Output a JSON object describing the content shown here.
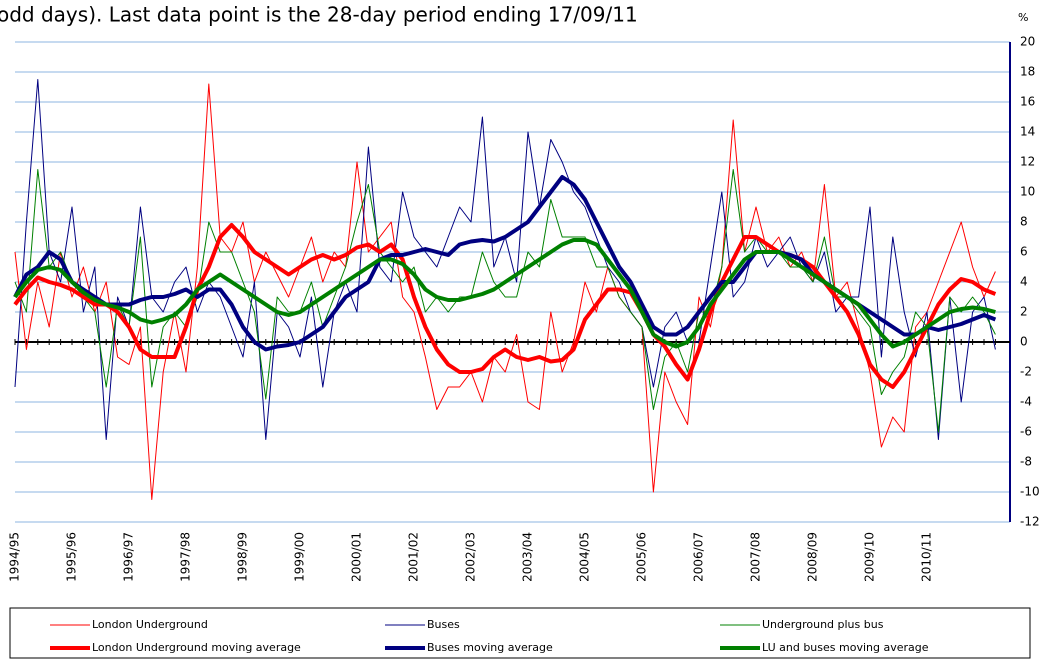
{
  "chart_data": {
    "type": "line",
    "title": "odd days). Last data point is the 28-day period ending 17/09/11",
    "ylabel": "%",
    "categories": [
      "1994/95",
      null,
      null,
      null,
      null,
      "1995/96",
      null,
      null,
      null,
      null,
      "1996/97",
      null,
      null,
      null,
      null,
      "1997/98",
      null,
      null,
      null,
      null,
      "1998/99",
      null,
      null,
      null,
      null,
      "1999/00",
      null,
      null,
      null,
      null,
      "2000/01",
      null,
      null,
      null,
      null,
      "2001/02",
      null,
      null,
      null,
      null,
      "2002/03",
      null,
      null,
      null,
      null,
      "2003/04",
      null,
      null,
      null,
      null,
      "2004/05",
      null,
      null,
      null,
      null,
      "2005/06",
      null,
      null,
      null,
      null,
      "2006/07",
      null,
      null,
      null,
      null,
      "2007/08",
      null,
      null,
      null,
      null,
      "2008/09",
      null,
      null,
      null,
      null,
      "2009/10",
      null,
      null,
      null,
      null,
      "2010/11",
      null,
      null,
      null,
      null,
      null,
      null
    ],
    "ylim": [
      -12,
      20
    ],
    "yticks": [
      -12,
      -10,
      -8,
      -6,
      -4,
      -2,
      0,
      2,
      4,
      6,
      8,
      10,
      12,
      14,
      16,
      18,
      20
    ],
    "grid": true,
    "series": [
      {
        "name": "London Underground",
        "color": "#ff0000",
        "width": 1,
        "values": [
          6,
          -0.5,
          4,
          1,
          6,
          3,
          5,
          2,
          4,
          -1,
          -1.5,
          1,
          -10.5,
          -2,
          2,
          -2,
          5,
          17.2,
          7,
          6,
          8,
          4,
          6,
          4.5,
          3,
          5,
          7,
          4,
          6,
          5,
          12,
          6,
          7,
          8,
          3,
          2,
          -1,
          -4.5,
          -3,
          -3,
          -2,
          -4,
          -1,
          -2,
          0.5,
          -4,
          -4.5,
          2,
          -2,
          0,
          4,
          2,
          5,
          3,
          2,
          1,
          -10,
          -2,
          -4,
          -5.5,
          3,
          1,
          5,
          14.8,
          6,
          9,
          6,
          7,
          5,
          6,
          4,
          10.5,
          3,
          4,
          1,
          -2,
          -7,
          -5,
          -6,
          1,
          2,
          4,
          6,
          8,
          5,
          3,
          4.7
        ]
      },
      {
        "name": "Buses",
        "color": "#000080",
        "width": 1,
        "values": [
          -3,
          8,
          17.5,
          6,
          4,
          9,
          2,
          5,
          -6.5,
          3,
          1,
          9,
          3,
          2,
          4,
          5,
          2,
          4,
          3,
          1,
          -1,
          4,
          -6.5,
          2,
          1,
          -1,
          3,
          -3,
          2,
          4,
          2,
          13,
          5,
          4,
          10,
          7,
          6,
          5,
          7,
          9,
          8,
          15,
          5,
          7,
          4,
          14,
          9,
          13.5,
          12,
          10,
          9,
          7,
          5,
          4,
          2,
          1,
          -3,
          1,
          2,
          0,
          0,
          5,
          10,
          3,
          4,
          7,
          5,
          6,
          7,
          5,
          4,
          6,
          2,
          3,
          3,
          9,
          -1,
          7,
          2,
          -1,
          2,
          -6.5,
          3,
          -4,
          2,
          3,
          -0.5
        ]
      },
      {
        "name": "Underground plus bus",
        "color": "#008000",
        "width": 1,
        "values": [
          4,
          2,
          11.5,
          5,
          6,
          4,
          3,
          2,
          -3,
          2.5,
          1,
          7,
          -3,
          1,
          2,
          1,
          3,
          8,
          6,
          6,
          4,
          2,
          -3.8,
          3,
          2,
          2,
          4,
          1,
          3,
          5,
          8,
          10.5,
          6,
          5,
          4,
          5,
          2,
          3,
          2,
          3,
          3,
          6,
          4,
          3,
          3,
          6,
          5,
          9.5,
          7,
          7,
          7,
          5,
          5,
          3,
          2,
          1,
          -4.5,
          -1,
          0,
          -2,
          2,
          2,
          5,
          11.5,
          6,
          7,
          6,
          6,
          5,
          5,
          4,
          7,
          3,
          3,
          2,
          1,
          -3.5,
          -2,
          -1,
          2,
          1,
          -6,
          3,
          2,
          3,
          2,
          0.5
        ]
      },
      {
        "name": "London Underground moving average",
        "color": "#ff0000",
        "width": 4,
        "values": [
          2.5,
          3.5,
          4.3,
          4,
          3.8,
          3.5,
          3,
          2.5,
          2.5,
          2,
          1,
          -0.5,
          -1,
          -1,
          -1,
          1,
          3.5,
          5,
          7,
          7.8,
          7,
          6,
          5.5,
          5,
          4.5,
          5,
          5.5,
          5.8,
          5.5,
          5.8,
          6.3,
          6.5,
          6,
          6.5,
          5.5,
          3,
          1,
          -0.5,
          -1.5,
          -2,
          -2,
          -1.8,
          -1,
          -0.5,
          -1,
          -1.2,
          -1,
          -1.3,
          -1.2,
          -0.5,
          1.5,
          2.5,
          3.5,
          3.5,
          3.3,
          2,
          0.5,
          -0.3,
          -1.5,
          -2.5,
          -0.5,
          2,
          4,
          5.5,
          7,
          7,
          6.5,
          6,
          5.8,
          5.5,
          5,
          4,
          3,
          2,
          0.5,
          -1.5,
          -2.5,
          -3,
          -2,
          -0.5,
          1,
          2.5,
          3.5,
          4.2,
          4,
          3.5,
          3.2
        ]
      },
      {
        "name": "Buses moving average",
        "color": "#000080",
        "width": 4,
        "values": [
          3,
          4.5,
          5,
          6,
          5.5,
          4,
          3.5,
          3,
          2.5,
          2.5,
          2.5,
          2.8,
          3,
          3,
          3.2,
          3.5,
          3,
          3.5,
          3.5,
          2.5,
          1,
          0,
          -0.5,
          -0.3,
          -0.2,
          0,
          0.5,
          1,
          2,
          3,
          3.5,
          4,
          5.5,
          5.8,
          5.8,
          6,
          6.2,
          6,
          5.8,
          6.5,
          6.7,
          6.8,
          6.7,
          7,
          7.5,
          8,
          9,
          10,
          11,
          10.5,
          9.5,
          8,
          6.5,
          5,
          4,
          2.5,
          1,
          0.5,
          0.5,
          1,
          2,
          3,
          4,
          4,
          5,
          6,
          6,
          6,
          5.8,
          5.5,
          4.5,
          4,
          3.5,
          3,
          2.5,
          2,
          1.5,
          1,
          0.5,
          0.5,
          1,
          0.8,
          1,
          1.2,
          1.5,
          1.8,
          1.5
        ]
      },
      {
        "name": "LU and buses moving average",
        "color": "#008000",
        "width": 4,
        "values": [
          3,
          4,
          4.8,
          5,
          4.8,
          4,
          3.3,
          2.8,
          2.5,
          2.3,
          2,
          1.5,
          1.3,
          1.5,
          1.8,
          2.5,
          3.5,
          4,
          4.5,
          4,
          3.5,
          3,
          2.5,
          2,
          1.8,
          2,
          2.5,
          3,
          3.5,
          4,
          4.5,
          5,
          5.5,
          5.5,
          5.2,
          4.5,
          3.5,
          3,
          2.8,
          2.8,
          3,
          3.2,
          3.5,
          4,
          4.5,
          5,
          5.5,
          6,
          6.5,
          6.8,
          6.8,
          6.5,
          5.5,
          4.5,
          3.5,
          2,
          0.5,
          0,
          -0.3,
          0,
          1,
          2.5,
          3.5,
          4.5,
          5.5,
          6,
          6,
          6,
          5.5,
          5,
          4.5,
          4,
          3.5,
          3,
          2.5,
          1.5,
          0.5,
          -0.3,
          0,
          0.5,
          1,
          1.5,
          2,
          2.2,
          2.3,
          2.2,
          2
        ]
      }
    ]
  }
}
